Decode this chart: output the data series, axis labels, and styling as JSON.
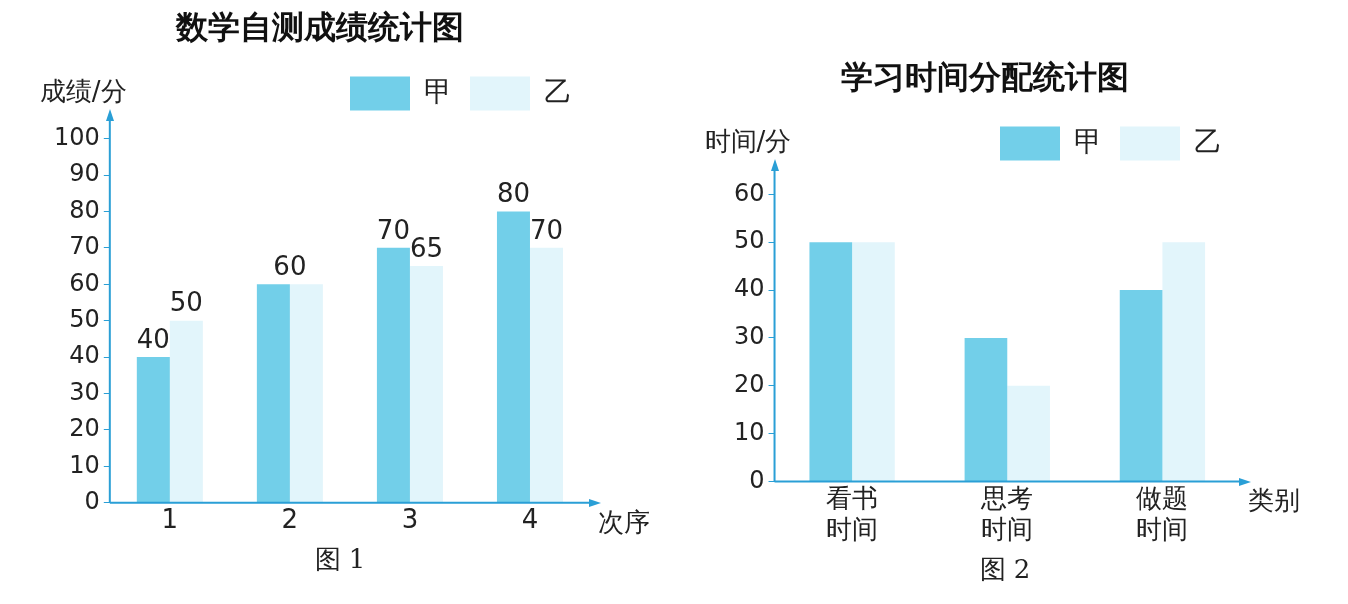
{
  "chart_data": [
    {
      "type": "bar",
      "title": "数学自测成绩统计图",
      "xlabel": "次序",
      "ylabel": "成绩/分",
      "annotations": [
        "图 1"
      ],
      "categories": [
        "1",
        "2",
        "3",
        "4"
      ],
      "series": [
        {
          "name": "甲",
          "color": "#72cfe9",
          "values": [
            40,
            60,
            70,
            80
          ],
          "value_labels": [
            "40",
            "60",
            "70",
            "80"
          ]
        },
        {
          "name": "乙",
          "color": "#e2f5fb",
          "values": [
            50,
            60,
            65,
            70
          ],
          "value_labels": [
            "50",
            null,
            "65",
            "70"
          ]
        }
      ],
      "ylim": [
        0,
        105
      ],
      "yticks": [
        0,
        10,
        20,
        30,
        40,
        50,
        60,
        70,
        80,
        90,
        100
      ],
      "grid": false,
      "legend": "top right"
    },
    {
      "type": "bar",
      "title": "学习时间分配统计图",
      "xlabel": "类别",
      "ylabel": "时间/分",
      "annotations": [
        "图 2"
      ],
      "categories": [
        "看书时间",
        "思考时间",
        "做题时间"
      ],
      "series": [
        {
          "name": "甲",
          "color": "#72cfe9",
          "values": [
            50,
            30,
            40
          ]
        },
        {
          "name": "乙",
          "color": "#e2f5fb",
          "values": [
            50,
            20,
            50
          ]
        }
      ],
      "ylim": [
        0,
        65
      ],
      "yticks": [
        0,
        10,
        20,
        30,
        40,
        50,
        60
      ],
      "grid": false,
      "legend": "top right"
    }
  ]
}
